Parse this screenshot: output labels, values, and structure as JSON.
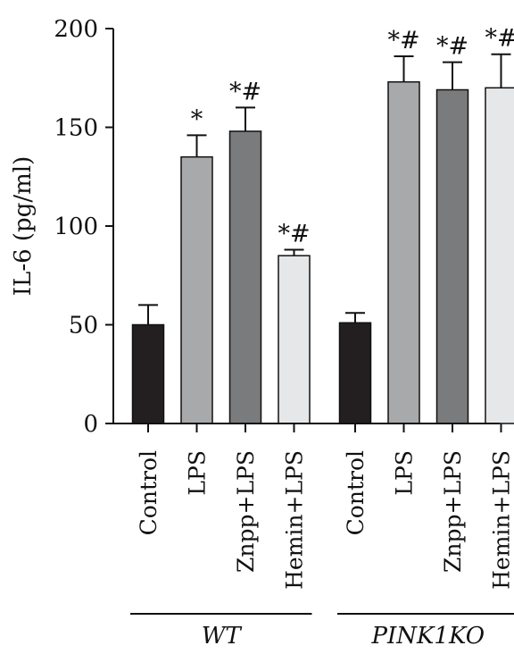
{
  "chart_data": {
    "type": "bar",
    "ylabel": "IL-6 (pg/ml)",
    "ylim": [
      0,
      200
    ],
    "yticks": [
      "0",
      "50",
      "100",
      "150",
      "200"
    ],
    "categories": [
      "Control",
      "LPS",
      "Znpp+LPS",
      "Hemin+LPS",
      "Control",
      "LPS",
      "Znpp+LPS",
      "Hemin+LPS"
    ],
    "values": [
      50,
      135,
      148,
      85,
      51,
      173,
      169,
      170
    ],
    "errors": [
      10,
      11,
      12,
      3,
      5,
      13,
      14,
      17
    ],
    "significance": [
      "",
      "*",
      "*#",
      "*#",
      "",
      "*#",
      "*#",
      "*#"
    ],
    "bar_colors": [
      "#231f20",
      "#a8a9ab",
      "#7a7b7d",
      "#e6e7e8",
      "#231f20",
      "#a8a9ab",
      "#7a7b7d",
      "#e6e7e8"
    ],
    "groups": [
      {
        "label": "WT",
        "start": 0,
        "end": 3
      },
      {
        "label": "PINK1KO",
        "start": 4,
        "end": 7
      }
    ],
    "grid": false,
    "legend": "none"
  }
}
